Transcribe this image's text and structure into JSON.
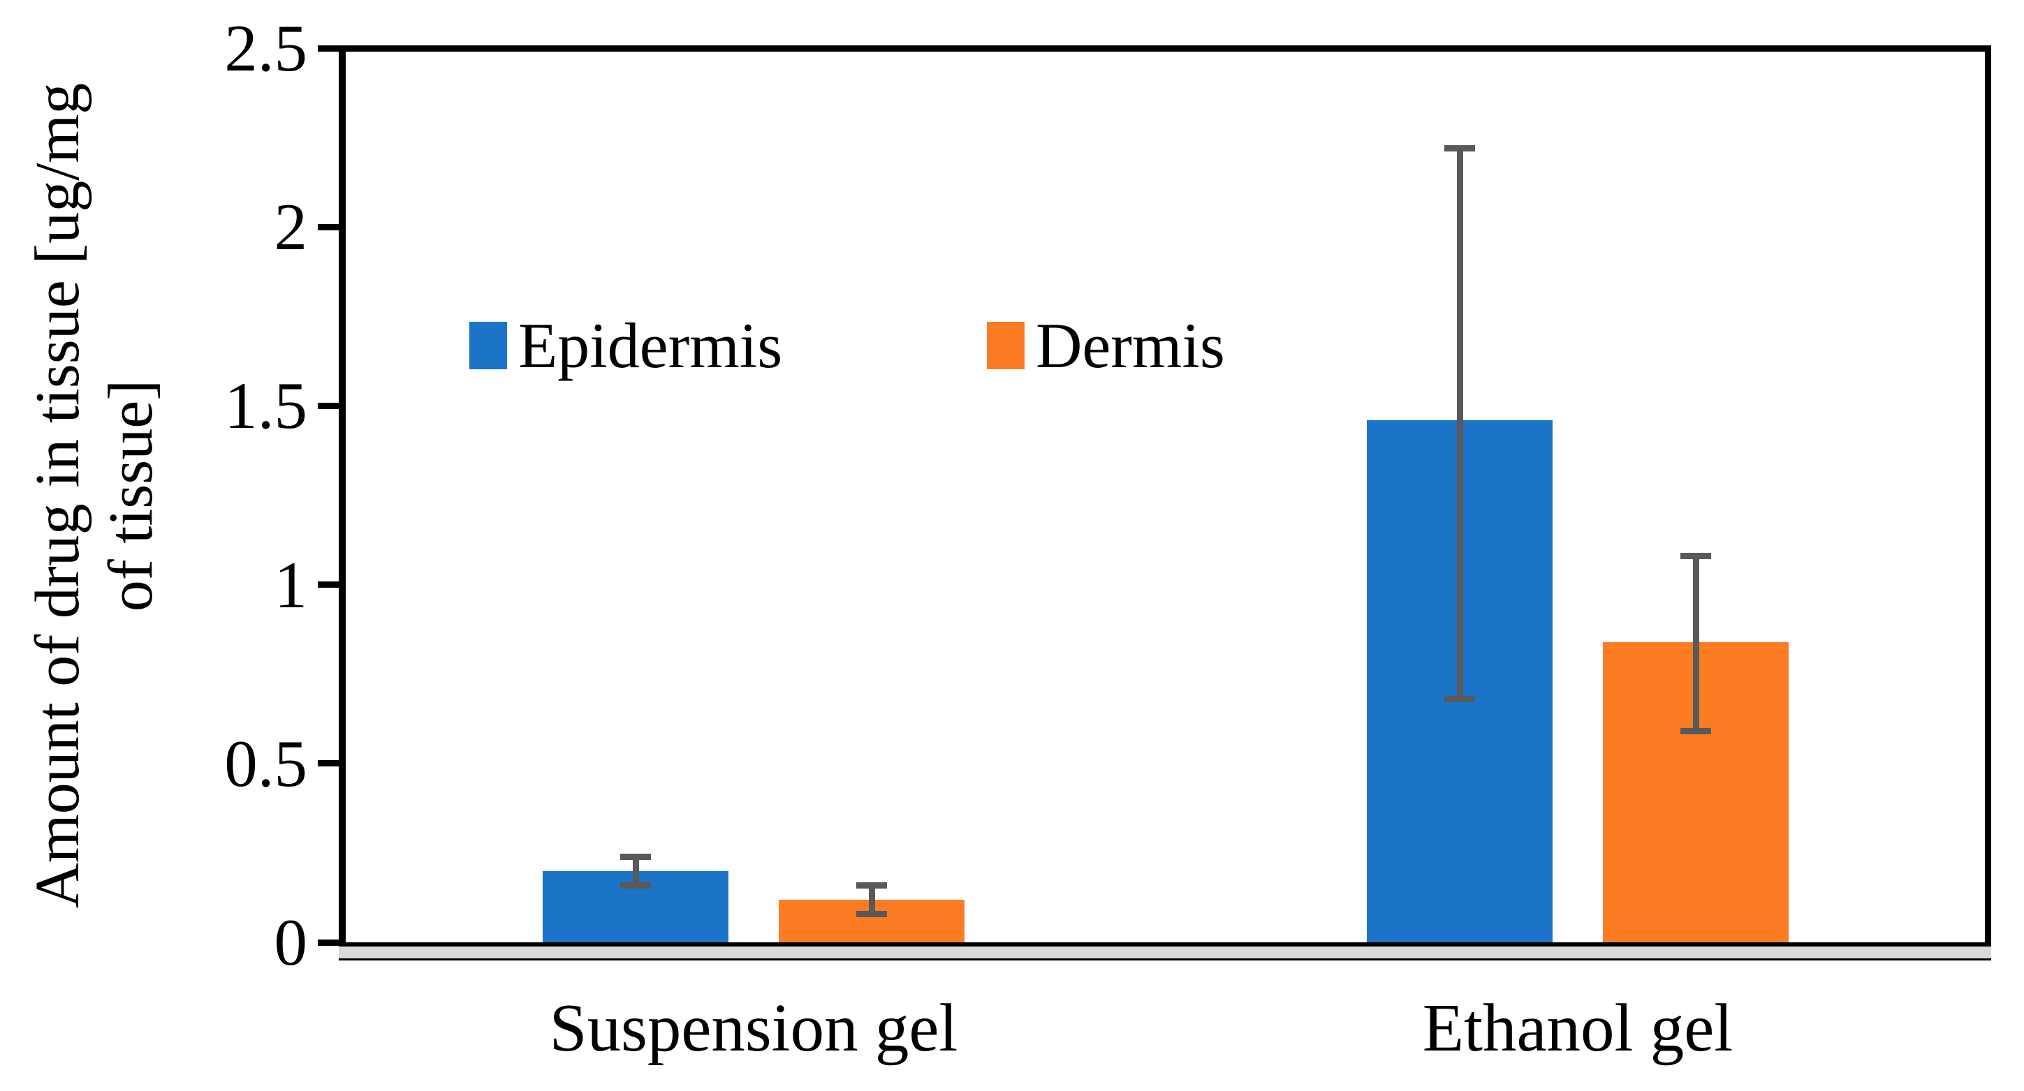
{
  "chart_data": {
    "type": "bar",
    "title": "",
    "categories": [
      "Suspension gel",
      "Ethanol gel"
    ],
    "series": [
      {
        "name": "Epidermis",
        "color": "#1B74C8",
        "values": [
          0.2,
          1.46
        ],
        "error_whisker_upper": [
          0.24,
          2.22
        ],
        "error_whisker_lower": [
          0.16,
          0.68
        ]
      },
      {
        "name": "Dermis",
        "color": "#FC7C24",
        "values": [
          0.12,
          0.84
        ],
        "error_whisker_upper": [
          0.16,
          1.08
        ],
        "error_whisker_lower": [
          0.08,
          0.59
        ]
      }
    ],
    "xlabel": "",
    "ylabel_lines": [
      "Amount of drug in tissue [ug/mg",
      "of tissue]"
    ],
    "ylabel": "Amount of drug in tissue [ug/mg of tissue]",
    "ylim": [
      0,
      2.5
    ],
    "ytick_labels": [
      "0",
      "0.5",
      "1",
      "1.5",
      "2",
      "2.5"
    ],
    "ytick_values": [
      0,
      0.5,
      1,
      1.5,
      2,
      2.5
    ],
    "grid": false,
    "legend_position": "inside-top-left",
    "error_bar_color": "#595959",
    "axis_floor_color": "#D9D9D9",
    "plot_border_color": "#000000",
    "background_color": "#FFFFFF"
  }
}
